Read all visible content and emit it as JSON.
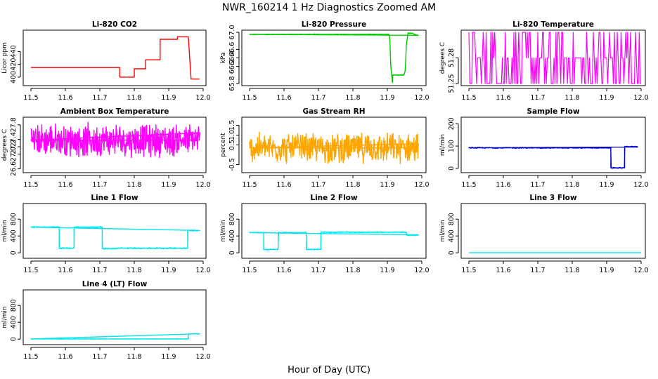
{
  "figure": {
    "title": "NWR_160214  1 Hz Diagnostics Zoomed AM",
    "xlabel": "Hour of Day (UTC)"
  },
  "chart_data": [
    {
      "type": "line",
      "title": "Li-820 CO2",
      "ylabel": "Licor ppm",
      "xlim": [
        11.5,
        12.0
      ],
      "ylim": [
        390,
        470
      ],
      "xticks": [
        11.5,
        11.6,
        11.7,
        11.8,
        11.9,
        12.0
      ],
      "xtick_labels": [
        "11.5",
        "11.6",
        "11.7",
        "11.8",
        "11.9",
        "12.0"
      ],
      "yticks": [
        400,
        420,
        440
      ],
      "ytick_labels": [
        "400",
        "420",
        "440"
      ],
      "color": "#ff0000",
      "noise": 0,
      "series": [
        {
          "x": [
            11.5,
            11.758,
            11.758,
            11.8,
            11.8,
            11.833,
            11.833,
            11.875,
            11.875,
            11.925,
            11.925,
            11.957,
            11.962,
            11.965,
            11.965,
            11.99
          ],
          "y": [
            415,
            415,
            400,
            400,
            413,
            413,
            427,
            427,
            459,
            459,
            463,
            463,
            420,
            397,
            397,
            397
          ]
        }
      ]
    },
    {
      "type": "line",
      "title": "Li-820 Pressure",
      "ylabel": "kPa",
      "xlim": [
        11.5,
        12.0
      ],
      "ylim": [
        65.8,
        67.0
      ],
      "xticks": [
        11.5,
        11.6,
        11.7,
        11.8,
        11.9,
        12.0
      ],
      "xtick_labels": [
        "11.5",
        "11.6",
        "11.7",
        "11.8",
        "11.9",
        "12.0"
      ],
      "yticks": [
        65.8,
        66.2,
        66.4,
        66.6,
        67.0
      ],
      "ytick_labels": [
        "65.8",
        "66.2",
        "66.4",
        "66.6",
        "67.0"
      ],
      "color": "#00cc00",
      "noise": 0.012,
      "series": [
        {
          "x": [
            11.5,
            11.905,
            11.907,
            11.91,
            11.915,
            11.915,
            11.948,
            11.952,
            11.955,
            11.96,
            11.97,
            11.99
          ],
          "y": [
            66.95,
            66.95,
            66.9,
            66.2,
            65.82,
            66.0,
            66.0,
            66.1,
            66.7,
            66.98,
            66.98,
            66.92
          ]
        }
      ]
    },
    {
      "type": "line",
      "title": "Li-820 Temperature",
      "ylabel": "degrees C",
      "xlim": [
        11.5,
        12.0
      ],
      "ylim": [
        51.25,
        51.31
      ],
      "xticks": [
        11.5,
        11.6,
        11.7,
        11.8,
        11.9,
        12.0
      ],
      "xtick_labels": [
        "11.5",
        "11.6",
        "11.7",
        "11.8",
        "11.9",
        "12.0"
      ],
      "yticks": [
        51.25,
        51.28
      ],
      "ytick_labels": [
        "51.25",
        "51.28"
      ],
      "color": "#ff00ff",
      "levels": [
        51.25,
        51.28,
        51.31
      ],
      "series": [
        {
          "x": [
            11.5,
            12.0
          ],
          "y": [
            51.25,
            51.31
          ]
        }
      ]
    },
    {
      "type": "line",
      "title": "Ambient Box Temperature",
      "ylabel": "degrees C",
      "xlim": [
        11.5,
        12.0
      ],
      "ylim": [
        26.55,
        27.95
      ],
      "xticks": [
        11.5,
        11.6,
        11.7,
        11.8,
        11.9,
        12.0
      ],
      "xtick_labels": [
        "11.5",
        "11.6",
        "11.7",
        "11.8",
        "11.9",
        "12.0"
      ],
      "yticks": [
        26.6,
        27.0,
        27.2,
        27.4,
        27.8
      ],
      "ytick_labels": [
        "26.6",
        "27.0",
        "27.2",
        "27.4",
        "27.8"
      ],
      "color": "#ff00ff",
      "noise": 0.5,
      "series": [
        {
          "x": [
            11.5,
            11.99
          ],
          "y": [
            27.38,
            27.38
          ]
        }
      ]
    },
    {
      "type": "line",
      "title": "Gas Stream RH",
      "ylabel": "percent",
      "xlim": [
        11.5,
        12.0
      ],
      "ylim": [
        -0.8,
        1.8
      ],
      "xticks": [
        11.5,
        11.6,
        11.7,
        11.8,
        11.9,
        12.0
      ],
      "xtick_labels": [
        "11.5",
        "11.6",
        "11.7",
        "11.8",
        "11.9",
        "12.0"
      ],
      "yticks": [
        -0.5,
        0.5,
        1.0,
        1.5
      ],
      "ytick_labels": [
        "-0.5",
        "0.5",
        "1.0",
        "1.5"
      ],
      "color": "#ffa500",
      "noise": 0.85,
      "series": [
        {
          "x": [
            11.5,
            11.99
          ],
          "y": [
            0.35,
            0.35
          ]
        }
      ]
    },
    {
      "type": "line",
      "title": "Sample Flow",
      "ylabel": "ml/min",
      "xlim": [
        11.5,
        12.0
      ],
      "ylim": [
        -10,
        220
      ],
      "xticks": [
        11.5,
        11.6,
        11.7,
        11.8,
        11.9,
        12.0
      ],
      "xtick_labels": [
        "11.5",
        "11.6",
        "11.7",
        "11.8",
        "11.9",
        "12.0"
      ],
      "yticks": [
        0,
        100,
        200
      ],
      "ytick_labels": [
        "0",
        "100",
        "200"
      ],
      "color": "#0000cc",
      "noise": 3,
      "series": [
        {
          "x": [
            11.5,
            11.912,
            11.912,
            11.952,
            11.952,
            11.99
          ],
          "y": [
            92,
            92,
            2,
            2,
            97,
            97
          ]
        }
      ]
    },
    {
      "type": "line",
      "title": "Line 1 Flow",
      "ylabel": "ml/min",
      "xlim": [
        11.5,
        12.0
      ],
      "ylim": [
        -80,
        1120
      ],
      "xticks": [
        11.5,
        11.6,
        11.7,
        11.8,
        11.9,
        12.0
      ],
      "xtick_labels": [
        "11.5",
        "11.6",
        "11.7",
        "11.8",
        "11.9",
        "12.0"
      ],
      "yticks": [
        0,
        400,
        800
      ],
      "ytick_labels": [
        "0",
        "400",
        "800"
      ],
      "color": "#00e5ee",
      "noise": 18,
      "series": [
        {
          "x": [
            11.5,
            11.582,
            11.582,
            11.625,
            11.625,
            11.707,
            11.707,
            11.75,
            11.75,
            11.955,
            11.955,
            11.99
          ],
          "y": [
            610,
            610,
            110,
            110,
            610,
            610,
            100,
            100,
            110,
            110,
            530,
            530
          ]
        }
      ]
    },
    {
      "type": "line",
      "title": "Line 2 Flow",
      "ylabel": "ml/min",
      "xlim": [
        11.5,
        12.0
      ],
      "ylim": [
        -80,
        1120
      ],
      "xticks": [
        11.5,
        11.6,
        11.7,
        11.8,
        11.9,
        12.0
      ],
      "xtick_labels": [
        "11.5",
        "11.6",
        "11.7",
        "11.8",
        "11.9",
        "12.0"
      ],
      "yticks": [
        0,
        400,
        800
      ],
      "ytick_labels": [
        "0",
        "400",
        "800"
      ],
      "color": "#00e5ee",
      "noise": 15,
      "series": [
        {
          "x": [
            11.5,
            11.541,
            11.541,
            11.583,
            11.583,
            11.665,
            11.665,
            11.707,
            11.707,
            11.955,
            11.955,
            11.99
          ],
          "y": [
            480,
            480,
            80,
            80,
            480,
            480,
            80,
            80,
            490,
            490,
            420,
            420
          ]
        }
      ]
    },
    {
      "type": "line",
      "title": "Line 3 Flow",
      "ylabel": "ml/min",
      "xlim": [
        11.5,
        12.0
      ],
      "ylim": [
        -80,
        1120
      ],
      "xticks": [
        11.5,
        11.6,
        11.7,
        11.8,
        11.9,
        12.0
      ],
      "xtick_labels": [
        "11.5",
        "11.6",
        "11.7",
        "11.8",
        "11.9",
        "12.0"
      ],
      "yticks": [
        0,
        400,
        800
      ],
      "ytick_labels": [
        "0",
        "400",
        "800"
      ],
      "color": "#00e5ee",
      "noise": 0,
      "series": [
        {
          "x": [
            11.5,
            12.0
          ],
          "y": [
            2,
            2
          ]
        }
      ]
    },
    {
      "type": "line",
      "title": "Line 4 (LT) Flow",
      "ylabel": "ml/min",
      "xlim": [
        11.5,
        12.0
      ],
      "ylim": [
        -80,
        1120
      ],
      "xticks": [
        11.5,
        11.6,
        11.7,
        11.8,
        11.9,
        12.0
      ],
      "xtick_labels": [
        "11.5",
        "11.6",
        "11.7",
        "11.8",
        "11.9",
        "12.0"
      ],
      "yticks": [
        0,
        400,
        800
      ],
      "ytick_labels": [
        "0",
        "400",
        "800"
      ],
      "color": "#00e5ee",
      "noise": 6,
      "series": [
        {
          "x": [
            11.5,
            11.957,
            11.957,
            11.99
          ],
          "y": [
            5,
            5,
            125,
            125
          ]
        }
      ]
    }
  ]
}
